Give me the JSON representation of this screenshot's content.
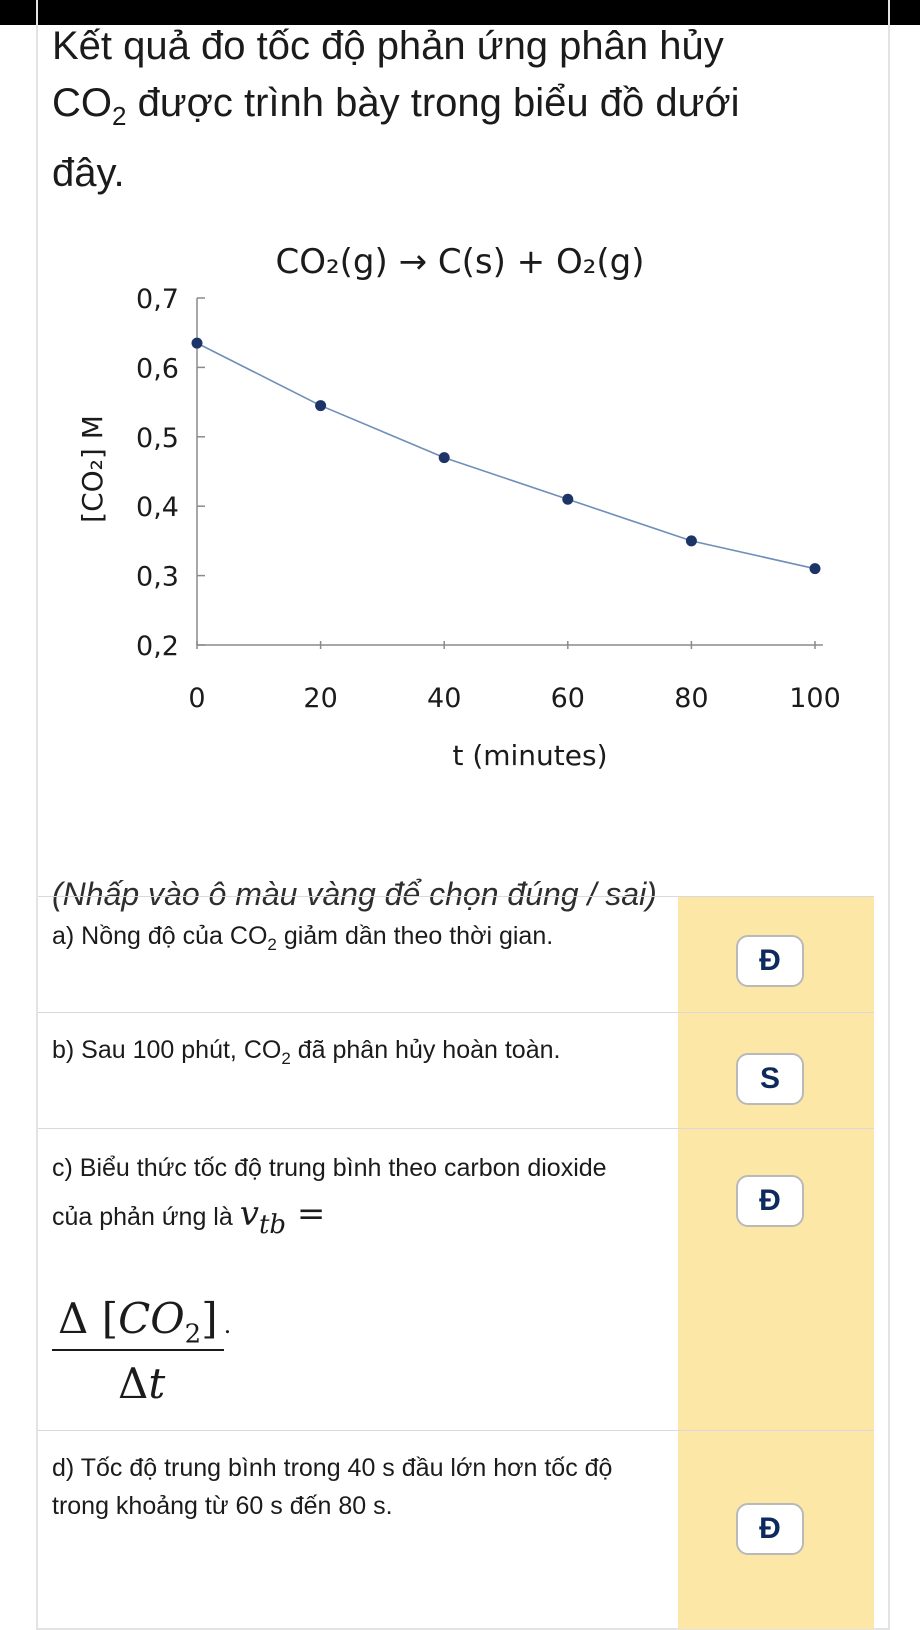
{
  "intro": {
    "line1": "Kết quả đo tốc độ phản ứng phân hủy",
    "co2_main": "CO",
    "co2_sub": "2",
    "line2_rest": " được trình bày trong biểu đồ dưới",
    "line3": "đây."
  },
  "chart_data": {
    "type": "line",
    "title": "CO₂(g) → C(s) + O₂(g)",
    "xlabel": "t (minutes)",
    "ylabel": "[CO₂] M",
    "x": [
      0,
      20,
      40,
      60,
      80,
      100
    ],
    "y": [
      0.635,
      0.545,
      0.47,
      0.41,
      0.35,
      0.31
    ],
    "xlim": [
      0,
      100
    ],
    "ylim": [
      0.2,
      0.7
    ],
    "xticks": [
      "0",
      "20",
      "40",
      "60",
      "80",
      "100"
    ],
    "yticks": [
      "0,2",
      "0,3",
      "0,4",
      "0,5",
      "0,6",
      "0,7"
    ],
    "colors": {
      "line": "#6f8fb8",
      "marker": "#1d3466",
      "axis": "#8a8a8a"
    }
  },
  "instruction": "(Nhấp vào ô màu vàng để chọn đúng / sai)",
  "statements": [
    {
      "pre": "a) Nồng độ của ",
      "sub_main": "CO",
      "sub": "2",
      "post": " giảm dần theo thời gian.",
      "answer": "Đ"
    },
    {
      "pre": "b) Sau 100 phút, ",
      "sub_main": "CO",
      "sub": "2",
      "post": " đã phân hủy hoàn toàn.",
      "answer": "S"
    },
    {
      "pre": "c) Biểu thức tốc độ trung bình theo carbon dioxide của phản ứng là ",
      "math_var": "v",
      "math_sub": "tb",
      "math_eq": " =",
      "frac_num_delta": "Δ",
      "frac_num_open": "[",
      "frac_num_var": "CO",
      "frac_num_sub": "2",
      "frac_num_close": "]",
      "frac_den_delta": "Δ",
      "frac_den_var": "t",
      "frac_period": ".",
      "answer": "Đ"
    },
    {
      "text": "d) Tốc độ trung bình trong 40 s đầu lớn hơn tốc độ trong khoảng từ 60 s đến 80 s.",
      "answer": "Đ"
    }
  ],
  "colors": {
    "answer_bg": "#fde7a6",
    "badge_text": "#0d2a5c"
  }
}
